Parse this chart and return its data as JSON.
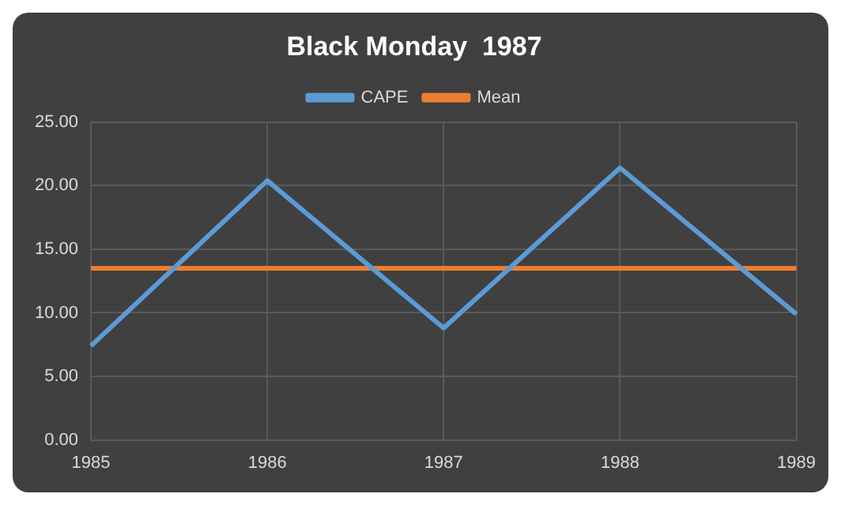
{
  "chart_data": {
    "type": "line",
    "title": "Black Monday  1987",
    "categories": [
      "1985",
      "1986",
      "1987",
      "1988",
      "1989"
    ],
    "series": [
      {
        "name": "CAPE",
        "color": "#5b9bd5",
        "values": [
          7.4,
          20.4,
          8.8,
          21.4,
          9.9
        ]
      },
      {
        "name": "Mean",
        "color": "#ed7d31",
        "values": [
          13.5,
          13.5,
          13.5,
          13.5,
          13.5
        ]
      }
    ],
    "ylim": [
      0,
      25
    ],
    "yticks": [
      {
        "value": 0,
        "label": "0.00"
      },
      {
        "value": 5,
        "label": "5.00"
      },
      {
        "value": 10,
        "label": "10.00"
      },
      {
        "value": 15,
        "label": "15.00"
      },
      {
        "value": 20,
        "label": "20.00"
      },
      {
        "value": 25,
        "label": "25.00"
      }
    ],
    "grid": true,
    "legend": "top",
    "marker": "none",
    "line_style": "solid"
  }
}
